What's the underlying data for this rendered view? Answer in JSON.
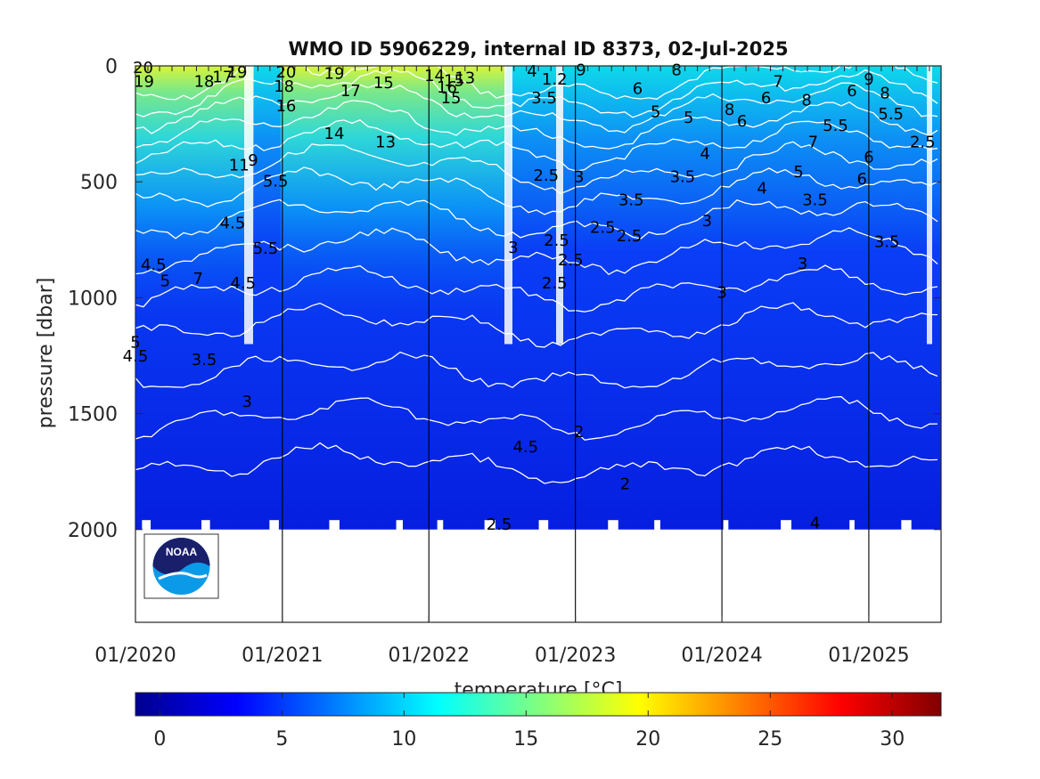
{
  "chart_data": {
    "type": "heatmap",
    "title": "WMO ID 5906229, internal ID 8373, 02-Jul-2025",
    "xlabel": "",
    "ylabel": "pressure [dbar]",
    "x_tick_labels": [
      "01/2020",
      "01/2021",
      "01/2022",
      "01/2023",
      "01/2024",
      "01/2025"
    ],
    "y_tick_labels": [
      "0",
      "500",
      "1000",
      "1500",
      "2000"
    ],
    "y_reversed": true,
    "ylim": [
      0,
      2400
    ],
    "xlim": [
      "2020-01-01",
      "2025-06-30"
    ],
    "colorbar": {
      "label": "temperature [°C]",
      "tick_labels": [
        "0",
        "5",
        "10",
        "15",
        "20",
        "25",
        "30"
      ],
      "range": [
        -1,
        32
      ],
      "colormap": "jet"
    },
    "field_region": {
      "x_from": "2020-01-01",
      "x_to": "2025-06-30",
      "pressure_from": 0,
      "pressure_to": 2000
    },
    "year_markers": [
      "2021-01-01",
      "2022-01-01",
      "2023-01-01",
      "2024-01-01",
      "2025-01-01"
    ],
    "grid": false,
    "colors": {
      "noaa_navy": "#1a1f6b",
      "noaa_sky": "#0b9ae8",
      "contour": "#ffffff"
    },
    "contour_labels": [
      {
        "text": "20",
        "date": "2020-01-20",
        "p": 0
      },
      {
        "text": "19",
        "date": "2020-01-22",
        "p": 60
      },
      {
        "text": "18",
        "date": "2020-06-20",
        "p": 60
      },
      {
        "text": "17",
        "date": "2020-08-05",
        "p": 40
      },
      {
        "text": "19",
        "date": "2020-09-10",
        "p": 20
      },
      {
        "text": "20",
        "date": "2021-01-10",
        "p": 20
      },
      {
        "text": "18",
        "date": "2021-01-05",
        "p": 80
      },
      {
        "text": "16",
        "date": "2021-01-10",
        "p": 165
      },
      {
        "text": "19",
        "date": "2021-05-10",
        "p": 25
      },
      {
        "text": "17",
        "date": "2021-06-20",
        "p": 100
      },
      {
        "text": "15",
        "date": "2021-09-10",
        "p": 65
      },
      {
        "text": "14",
        "date": "2021-05-10",
        "p": 285
      },
      {
        "text": "13",
        "date": "2021-09-15",
        "p": 320
      },
      {
        "text": "14",
        "date": "2022-01-15",
        "p": 35
      },
      {
        "text": "16",
        "date": "2022-02-15",
        "p": 85
      },
      {
        "text": "15",
        "date": "2022-03-05",
        "p": 55
      },
      {
        "text": "13",
        "date": "2022-04-01",
        "p": 45
      },
      {
        "text": "15",
        "date": "2022-02-25",
        "p": 130
      },
      {
        "text": "11",
        "date": "2020-09-15",
        "p": 420
      },
      {
        "text": "9",
        "date": "2020-10-20",
        "p": 400
      },
      {
        "text": "5.5",
        "date": "2020-12-15",
        "p": 490
      },
      {
        "text": "4.5",
        "date": "2020-08-30",
        "p": 670
      },
      {
        "text": "5.5",
        "date": "2020-11-20",
        "p": 780
      },
      {
        "text": "4.5",
        "date": "2020-02-15",
        "p": 850
      },
      {
        "text": "5",
        "date": "2020-03-15",
        "p": 920
      },
      {
        "text": "7",
        "date": "2020-06-05",
        "p": 910
      },
      {
        "text": "4.5",
        "date": "2020-09-25",
        "p": 930
      },
      {
        "text": "5",
        "date": "2020-01-01",
        "p": 1185
      },
      {
        "text": "4.5",
        "date": "2020-01-01",
        "p": 1245
      },
      {
        "text": "3.5",
        "date": "2020-06-20",
        "p": 1260
      },
      {
        "text": "3",
        "date": "2020-10-05",
        "p": 1440
      },
      {
        "text": "4",
        "date": "2022-09-15",
        "p": 15
      },
      {
        "text": "3.5",
        "date": "2022-10-15",
        "p": 130
      },
      {
        "text": "2.5",
        "date": "2022-10-20",
        "p": 465
      },
      {
        "text": "3",
        "date": "2022-07-30",
        "p": 775
      },
      {
        "text": "2.5",
        "date": "2022-11-15",
        "p": 745
      },
      {
        "text": "2.5",
        "date": "2022-11-10",
        "p": 930
      },
      {
        "text": "2.5",
        "date": "2022-12-20",
        "p": 830
      },
      {
        "text": "4.5",
        "date": "2022-08-30",
        "p": 1635
      },
      {
        "text": "2.5",
        "date": "2022-06-25",
        "p": 1970
      },
      {
        "text": "2",
        "date": "2023-01-10",
        "p": 1570
      },
      {
        "text": "2",
        "date": "2023-05-05",
        "p": 1795
      },
      {
        "text": "2.5",
        "date": "2023-03-10",
        "p": 690
      },
      {
        "text": "2.5",
        "date": "2023-05-15",
        "p": 725
      },
      {
        "text": "3.5",
        "date": "2023-05-20",
        "p": 570
      },
      {
        "text": "3",
        "date": "2024-01-01",
        "p": 970
      },
      {
        "text": "3",
        "date": "2023-11-25",
        "p": 660
      },
      {
        "text": "4",
        "date": "2023-11-20",
        "p": 370
      },
      {
        "text": "3.5",
        "date": "2023-09-25",
        "p": 470
      },
      {
        "text": "4",
        "date": "2024-04-10",
        "p": 520
      },
      {
        "text": "8",
        "date": "2023-09-10",
        "p": 10
      },
      {
        "text": "6",
        "date": "2023-06-05",
        "p": 90
      },
      {
        "text": "5",
        "date": "2023-07-20",
        "p": 190
      },
      {
        "text": "5",
        "date": "2023-10-10",
        "p": 215
      },
      {
        "text": "8",
        "date": "2024-01-20",
        "p": 180
      },
      {
        "text": "6",
        "date": "2024-02-20",
        "p": 230
      },
      {
        "text": "6",
        "date": "2024-04-20",
        "p": 130
      },
      {
        "text": "7",
        "date": "2024-05-20",
        "p": 60
      },
      {
        "text": "8",
        "date": "2024-07-30",
        "p": 140
      },
      {
        "text": "6",
        "date": "2024-11-20",
        "p": 100
      },
      {
        "text": "9",
        "date": "2025-01-01",
        "p": 50
      },
      {
        "text": "8",
        "date": "2025-02-10",
        "p": 110
      },
      {
        "text": "5.5",
        "date": "2025-02-25",
        "p": 200
      },
      {
        "text": "2.5",
        "date": "2025-05-15",
        "p": 320
      },
      {
        "text": "6",
        "date": "2025-01-01",
        "p": 385
      },
      {
        "text": "6",
        "date": "2024-12-15",
        "p": 480
      },
      {
        "text": "3.5",
        "date": "2024-08-20",
        "p": 570
      },
      {
        "text": "3",
        "date": "2024-07-20",
        "p": 845
      },
      {
        "text": "3.5",
        "date": "2025-02-15",
        "p": 750
      },
      {
        "text": "4",
        "date": "2024-08-20",
        "p": 1965
      },
      {
        "text": "5",
        "date": "2024-07-10",
        "p": 450
      },
      {
        "text": "7",
        "date": "2024-08-15",
        "p": 320
      },
      {
        "text": "5.5",
        "date": "2024-10-10",
        "p": 250
      },
      {
        "text": "9",
        "date": "2023-01-15",
        "p": 10
      },
      {
        "text": "1.2",
        "date": "2022-11-10",
        "p": 50
      },
      {
        "text": "3",
        "date": "2023-01-10",
        "p": 470
      }
    ]
  },
  "logo": {
    "text": "NOAA"
  }
}
